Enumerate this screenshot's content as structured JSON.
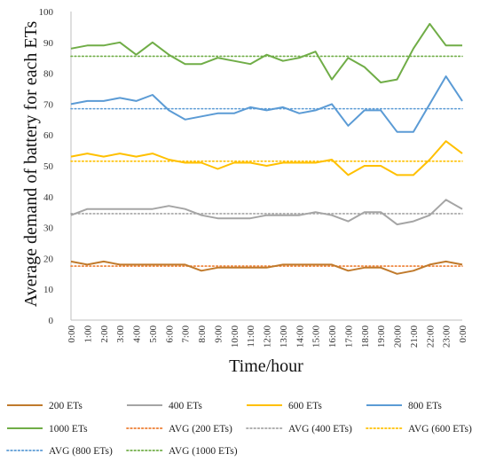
{
  "chart_data": {
    "type": "line",
    "xlabel": "Time/hour",
    "ylabel": "Average demand of battery for each ETs",
    "ylim": [
      0,
      100
    ],
    "yticks": [
      "0",
      "10",
      "20",
      "30",
      "40",
      "50",
      "60",
      "70",
      "80",
      "90",
      "100"
    ],
    "categories": [
      "0:00",
      "1:00",
      "2:00",
      "3:00",
      "4:00",
      "5:00",
      "6:00",
      "7:00",
      "8:00",
      "9:00",
      "10:00",
      "11:00",
      "12:00",
      "13:00",
      "14:00",
      "15:00",
      "16:00",
      "17:00",
      "18:00",
      "19:00",
      "20:00",
      "21:00",
      "22:00",
      "23:00",
      "0:00"
    ],
    "grid": false,
    "legend_position": "bottom",
    "series": [
      {
        "name": "200 ETs",
        "color": "#C07A2C",
        "style": "solid",
        "values": [
          19,
          18,
          19,
          18,
          18,
          18,
          18,
          18,
          16,
          17,
          17,
          17,
          17,
          18,
          18,
          18,
          18,
          16,
          17,
          17,
          15,
          16,
          18,
          19,
          18
        ]
      },
      {
        "name": "400 ETs",
        "color": "#A5A5A5",
        "style": "solid",
        "values": [
          34,
          36,
          36,
          36,
          36,
          36,
          37,
          36,
          34,
          33,
          33,
          33,
          34,
          34,
          34,
          35,
          34,
          32,
          35,
          35,
          31,
          32,
          34,
          39,
          36
        ]
      },
      {
        "name": "600 ETs",
        "color": "#FFC000",
        "style": "solid",
        "values": [
          53,
          54,
          53,
          54,
          53,
          54,
          52,
          51,
          51,
          49,
          51,
          51,
          50,
          51,
          51,
          51,
          52,
          47,
          50,
          50,
          47,
          47,
          52,
          58,
          54
        ]
      },
      {
        "name": "800 ETs",
        "color": "#5B9BD5",
        "style": "solid",
        "values": [
          70,
          71,
          71,
          72,
          71,
          73,
          68,
          65,
          66,
          67,
          67,
          69,
          68,
          69,
          67,
          68,
          70,
          63,
          68,
          68,
          61,
          61,
          70,
          79,
          71
        ]
      },
      {
        "name": "1000 ETs",
        "color": "#70AD47",
        "style": "solid",
        "values": [
          88,
          89,
          89,
          90,
          86,
          90,
          86,
          83,
          83,
          85,
          84,
          83,
          86,
          84,
          85,
          87,
          78,
          85,
          82,
          77,
          78,
          88,
          96,
          89,
          89
        ]
      },
      {
        "name": "AVG (200 ETs)",
        "color": "#ED7D31",
        "style": "dotted",
        "constant": 17.5
      },
      {
        "name": "AVG (400 ETs)",
        "color": "#A5A5A5",
        "style": "dotted",
        "constant": 34.5
      },
      {
        "name": "AVG (600 ETs)",
        "color": "#FFC000",
        "style": "dotted",
        "constant": 51.5
      },
      {
        "name": "AVG (800 ETs)",
        "color": "#5B9BD5",
        "style": "dotted",
        "constant": 68.5
      },
      {
        "name": "AVG (1000 ETs)",
        "color": "#70AD47",
        "style": "dotted",
        "constant": 85.5
      }
    ]
  }
}
